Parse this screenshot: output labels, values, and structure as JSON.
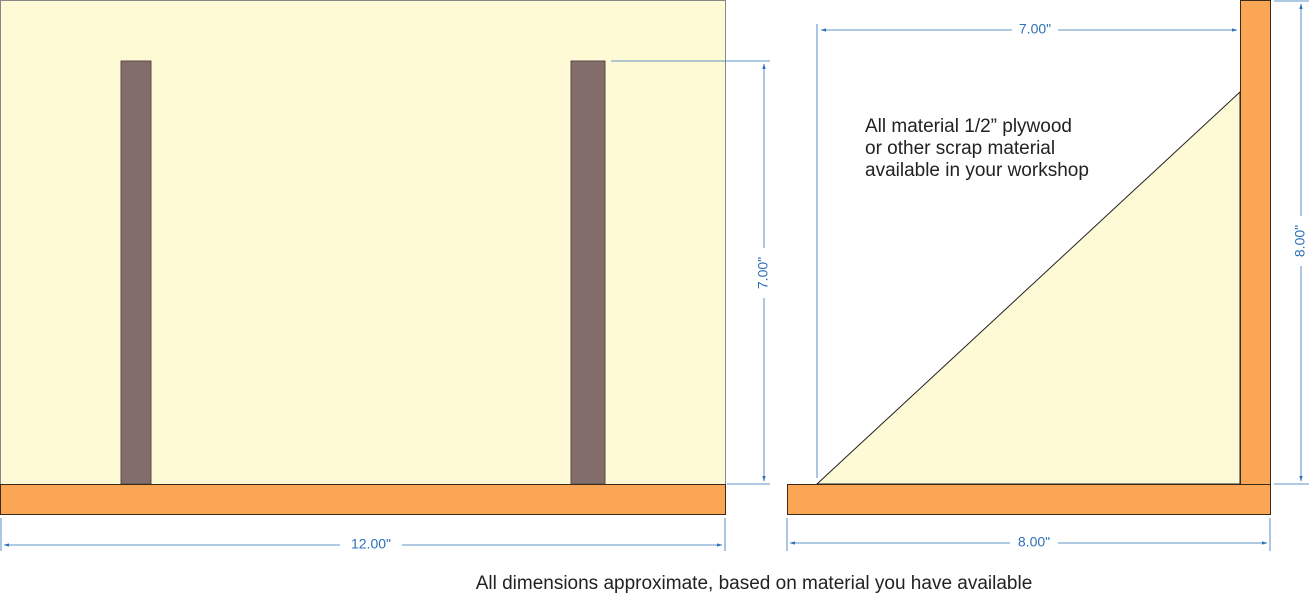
{
  "colors": {
    "panel_fill": "#fffad6",
    "board_fill": "#fba654",
    "board_stroke": "#3a2a1a",
    "post_fill": "#836d6a",
    "dimension_color": "#2d70b8",
    "outline": "#444444"
  },
  "front_view": {
    "width_label": "12.00\"",
    "height_label": "7.00\""
  },
  "side_view": {
    "top_label": "7.00\"",
    "right_label": "8.00\"",
    "bottom_label": "8.00\""
  },
  "note": {
    "line1": "All material 1/2” plywood",
    "line2": "or other scrap material",
    "line3": "available in your workshop"
  },
  "caption": "All dimensions approximate, based on material you have available"
}
